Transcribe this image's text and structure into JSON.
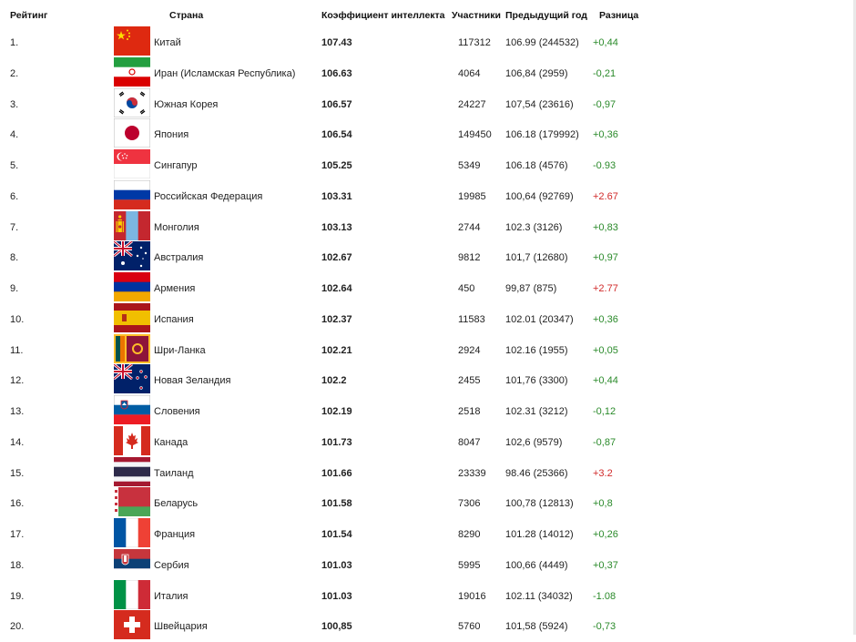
{
  "headers": {
    "rank": "Рейтинг",
    "country": "Страна",
    "iq": "Коэффициент интеллекта",
    "participants": "Участники",
    "previous": "Предыдущий год",
    "difference": "Разница"
  },
  "rows": [
    {
      "rank": "1.",
      "country": "Китай",
      "iq": "107.43",
      "participants": "117312",
      "previous": "106.99 (244532)",
      "diff": "+0,44",
      "diff_color": "green",
      "flag": "china-flag-icon"
    },
    {
      "rank": "2.",
      "country": "Иран (Исламская Республика)",
      "iq": "106.63",
      "participants": "4064",
      "previous": "106,84 (2959)",
      "diff": "-0,21",
      "diff_color": "green",
      "flag": "iran-flag-icon"
    },
    {
      "rank": "3.",
      "country": "Южная Корея",
      "iq": "106.57",
      "participants": "24227",
      "previous": "107,54 (23616)",
      "diff": "-0,97",
      "diff_color": "green",
      "flag": "south-korea-flag-icon"
    },
    {
      "rank": "4.",
      "country": "Япония",
      "iq": "106.54",
      "participants": "149450",
      "previous": "106.18 (179992)",
      "diff": "+0,36",
      "diff_color": "green",
      "flag": "japan-flag-icon"
    },
    {
      "rank": "5.",
      "country": "Сингапур",
      "iq": "105.25",
      "participants": "5349",
      "previous": "106.18 (4576)",
      "diff": "-0.93",
      "diff_color": "green",
      "flag": "singapore-flag-icon"
    },
    {
      "rank": "6.",
      "country": "Российская Федерация",
      "iq": "103.31",
      "participants": "19985",
      "previous": "100,64 (92769)",
      "diff": "+2.67",
      "diff_color": "red",
      "flag": "russia-flag-icon"
    },
    {
      "rank": "7.",
      "country": "Монголия",
      "iq": "103.13",
      "participants": "2744",
      "previous": "102.3 (3126)",
      "diff": "+0,83",
      "diff_color": "green",
      "flag": "mongolia-flag-icon"
    },
    {
      "rank": "8.",
      "country": "Австралия",
      "iq": "102.67",
      "participants": "9812",
      "previous": "101,7 (12680)",
      "diff": "+0,97",
      "diff_color": "green",
      "flag": "australia-flag-icon"
    },
    {
      "rank": "9.",
      "country": "Армения",
      "iq": "102.64",
      "participants": "450",
      "previous": "99,87 (875)",
      "diff": "+2.77",
      "diff_color": "red",
      "flag": "armenia-flag-icon"
    },
    {
      "rank": "10.",
      "country": "Испания",
      "iq": "102.37",
      "participants": "11583",
      "previous": "102.01 (20347)",
      "diff": "+0,36",
      "diff_color": "green",
      "flag": "spain-flag-icon"
    },
    {
      "rank": "11.",
      "country": "Шри-Ланка",
      "iq": "102.21",
      "participants": "2924",
      "previous": "102.16 (1955)",
      "diff": "+0,05",
      "diff_color": "green",
      "flag": "sri-lanka-flag-icon"
    },
    {
      "rank": "12.",
      "country": "Новая Зеландия",
      "iq": "102.2",
      "participants": "2455",
      "previous": "101,76 (3300)",
      "diff": "+0,44",
      "diff_color": "green",
      "flag": "new-zealand-flag-icon"
    },
    {
      "rank": "13.",
      "country": "Словения",
      "iq": "102.19",
      "participants": "2518",
      "previous": "102.31 (3212)",
      "diff": "-0,12",
      "diff_color": "green",
      "flag": "slovenia-flag-icon"
    },
    {
      "rank": "14.",
      "country": "Канада",
      "iq": "101.73",
      "participants": "8047",
      "previous": "102,6 (9579)",
      "diff": "-0,87",
      "diff_color": "green",
      "flag": "canada-flag-icon"
    },
    {
      "rank": "15.",
      "country": "Таиланд",
      "iq": "101.66",
      "participants": "23339",
      "previous": "98.46 (25366)",
      "diff": "+3.2",
      "diff_color": "red",
      "flag": "thailand-flag-icon"
    },
    {
      "rank": "16.",
      "country": "Беларусь",
      "iq": "101.58",
      "participants": "7306",
      "previous": "100,78 (12813)",
      "diff": "+0,8",
      "diff_color": "green",
      "flag": "belarus-flag-icon"
    },
    {
      "rank": "17.",
      "country": "Франция",
      "iq": "101.54",
      "participants": "8290",
      "previous": "101.28 (14012)",
      "diff": "+0,26",
      "diff_color": "green",
      "flag": "france-flag-icon"
    },
    {
      "rank": "18.",
      "country": "Сербия",
      "iq": "101.03",
      "participants": "5995",
      "previous": "100,66 (4449)",
      "diff": "+0,37",
      "diff_color": "green",
      "flag": "serbia-flag-icon"
    },
    {
      "rank": "19.",
      "country": "Италия",
      "iq": "101.03",
      "participants": "19016",
      "previous": "102.11 (34032)",
      "diff": "-1.08",
      "diff_color": "green",
      "flag": "italy-flag-icon"
    },
    {
      "rank": "20.",
      "country": "Швейцария",
      "iq": "100,85",
      "participants": "5760",
      "previous": "101,58 (5924)",
      "diff": "-0,73",
      "diff_color": "green",
      "flag": "switzerland-flag-icon"
    }
  ],
  "colors": {
    "green": "#2a8a2a",
    "red": "#d12a2a"
  }
}
